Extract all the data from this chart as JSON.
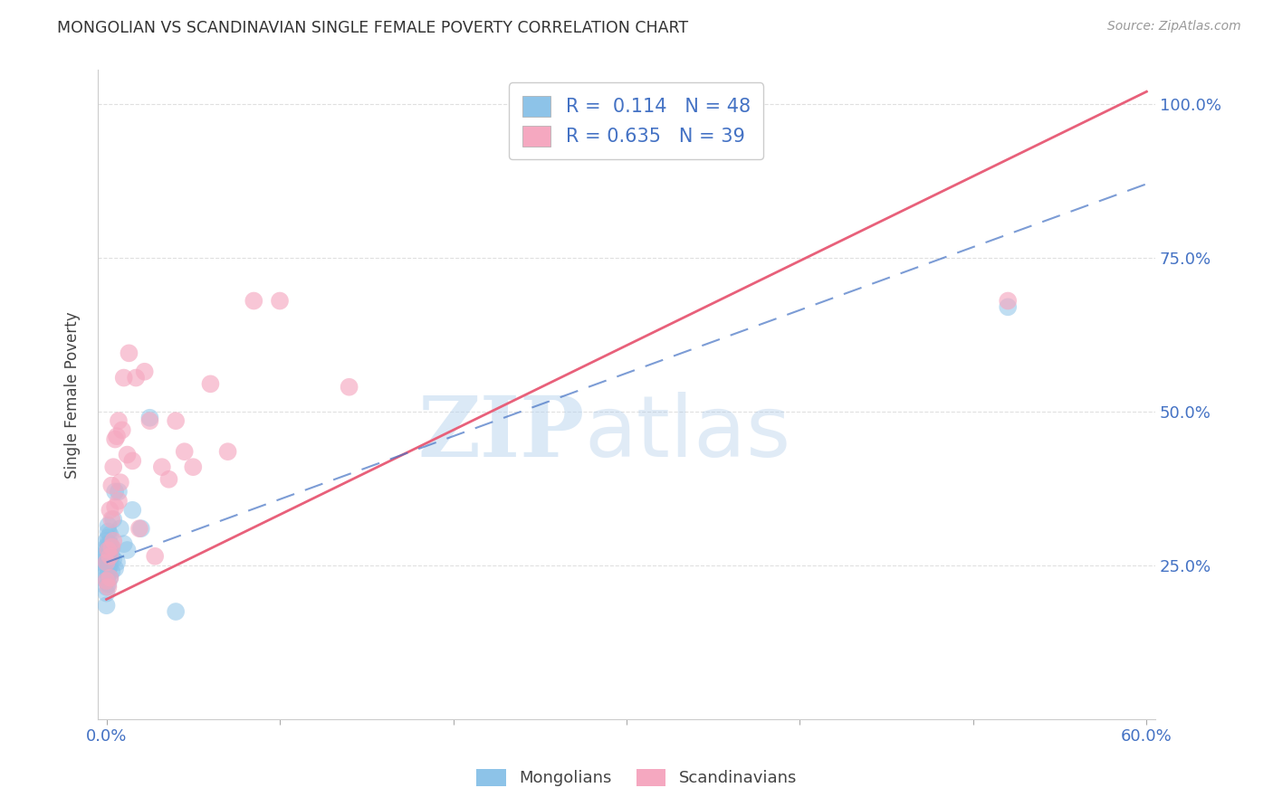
{
  "title": "MONGOLIAN VS SCANDINAVIAN SINGLE FEMALE POVERTY CORRELATION CHART",
  "source": "Source: ZipAtlas.com",
  "ylabel": "Single Female Poverty",
  "legend_blue_r": "R =  0.114",
  "legend_blue_n": "N = 48",
  "legend_pink_r": "R = 0.635",
  "legend_pink_n": "N = 39",
  "watermark_zip": "ZIP",
  "watermark_atlas": "atlas",
  "blue_color": "#8DC3E8",
  "pink_color": "#F5A8C0",
  "blue_line_color": "#4472C4",
  "pink_line_color": "#E8607A",
  "mongolians_x": [
    0.0,
    0.0,
    0.0,
    0.0,
    0.0,
    0.0,
    0.0,
    0.0,
    0.0,
    0.0,
    0.0,
    0.0,
    0.0,
    0.0,
    0.0,
    0.001,
    0.001,
    0.001,
    0.001,
    0.001,
    0.001,
    0.001,
    0.001,
    0.001,
    0.001,
    0.002,
    0.002,
    0.002,
    0.002,
    0.002,
    0.002,
    0.003,
    0.003,
    0.003,
    0.004,
    0.004,
    0.005,
    0.005,
    0.006,
    0.007,
    0.008,
    0.01,
    0.012,
    0.015,
    0.02,
    0.025,
    0.04,
    0.52
  ],
  "mongolians_y": [
    0.185,
    0.205,
    0.215,
    0.225,
    0.23,
    0.24,
    0.245,
    0.25,
    0.255,
    0.26,
    0.265,
    0.27,
    0.275,
    0.28,
    0.29,
    0.22,
    0.235,
    0.245,
    0.255,
    0.265,
    0.275,
    0.285,
    0.295,
    0.305,
    0.315,
    0.23,
    0.25,
    0.265,
    0.275,
    0.285,
    0.3,
    0.24,
    0.265,
    0.28,
    0.26,
    0.325,
    0.245,
    0.37,
    0.255,
    0.37,
    0.31,
    0.285,
    0.275,
    0.34,
    0.31,
    0.49,
    0.175,
    0.67
  ],
  "scandinavians_x": [
    0.0,
    0.0,
    0.001,
    0.001,
    0.002,
    0.002,
    0.002,
    0.003,
    0.003,
    0.003,
    0.004,
    0.004,
    0.005,
    0.005,
    0.006,
    0.007,
    0.007,
    0.008,
    0.009,
    0.01,
    0.012,
    0.013,
    0.015,
    0.017,
    0.019,
    0.022,
    0.025,
    0.028,
    0.032,
    0.036,
    0.04,
    0.045,
    0.05,
    0.06,
    0.07,
    0.085,
    0.1,
    0.14,
    0.52
  ],
  "scandinavians_y": [
    0.225,
    0.255,
    0.215,
    0.275,
    0.23,
    0.265,
    0.34,
    0.28,
    0.325,
    0.38,
    0.29,
    0.41,
    0.345,
    0.455,
    0.46,
    0.355,
    0.485,
    0.385,
    0.47,
    0.555,
    0.43,
    0.595,
    0.42,
    0.555,
    0.31,
    0.565,
    0.485,
    0.265,
    0.41,
    0.39,
    0.485,
    0.435,
    0.41,
    0.545,
    0.435,
    0.68,
    0.68,
    0.54,
    0.68
  ],
  "pink_line_x0": 0.0,
  "pink_line_y0": 0.195,
  "pink_line_x1": 0.6,
  "pink_line_y1": 1.02,
  "blue_line_x0": 0.0,
  "blue_line_y0": 0.255,
  "blue_line_x1": 0.6,
  "blue_line_y1": 0.87,
  "xmin": -0.005,
  "xmax": 0.605,
  "ymin": 0.0,
  "ymax": 1.055,
  "xticks": [
    0.0,
    0.1,
    0.2,
    0.3,
    0.4,
    0.5,
    0.6
  ],
  "yticks": [
    0.25,
    0.5,
    0.75,
    1.0
  ],
  "background_color": "#FFFFFF",
  "grid_color": "#DDDDDD"
}
